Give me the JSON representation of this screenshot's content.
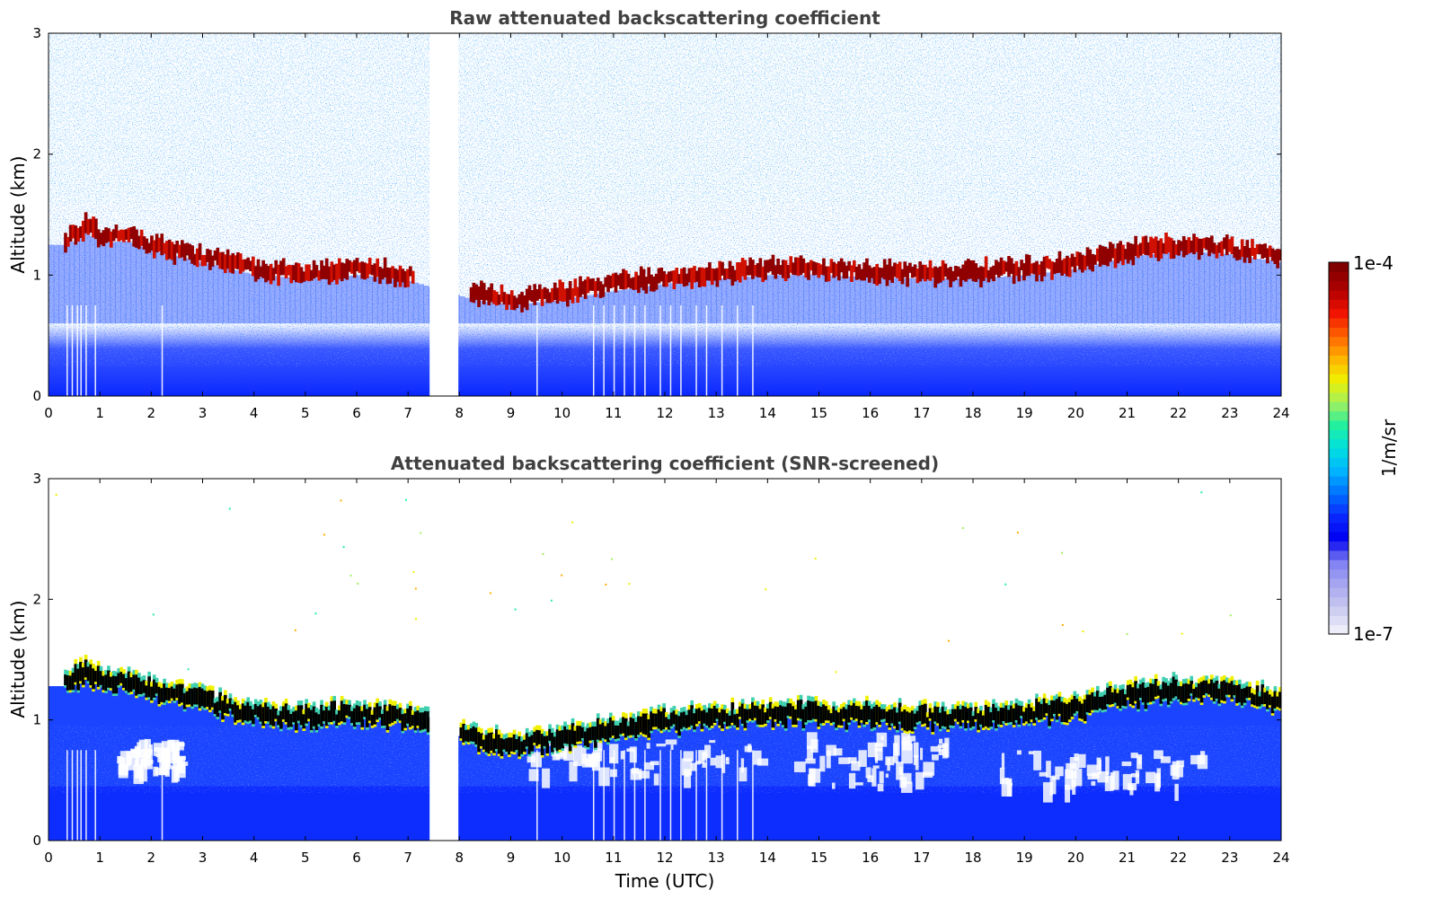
{
  "chart_data": [
    {
      "type": "heatmap",
      "title": "Raw attenuated backscattering coefficient",
      "ylabel": "Altitude (km)",
      "xlabel": "",
      "xlim": [
        0,
        24
      ],
      "ylim": [
        0,
        3
      ],
      "x_ticks": [
        "0",
        "1",
        "2",
        "3",
        "4",
        "5",
        "6",
        "7",
        "8",
        "9",
        "10",
        "11",
        "12",
        "13",
        "14",
        "15",
        "16",
        "17",
        "18",
        "19",
        "20",
        "21",
        "22",
        "23",
        "24"
      ],
      "y_ticks": [
        "0",
        "1",
        "2",
        "3"
      ],
      "data_gap_hours": [
        7.42,
        7.98
      ],
      "cloud_layer_altitude_km": {
        "x": [
          0.3,
          0.7,
          1.0,
          1.5,
          2.0,
          2.5,
          3.0,
          3.7,
          4.0,
          5.0,
          6.0,
          7.0,
          8.2,
          9.0,
          10.0,
          11.0,
          12.0,
          13.0,
          14.0,
          15.0,
          16.0,
          17.0,
          18.0,
          19.0,
          20.0,
          21.0,
          22.0,
          23.0,
          24.0
        ],
        "y": [
          1.3,
          1.4,
          1.32,
          1.33,
          1.25,
          1.2,
          1.15,
          1.08,
          1.05,
          1.02,
          1.05,
          1.0,
          0.85,
          0.8,
          0.85,
          0.92,
          0.98,
          1.02,
          1.05,
          1.05,
          1.03,
          1.02,
          1.02,
          1.05,
          1.1,
          1.2,
          1.25,
          1.22,
          1.15
        ]
      },
      "background": "noisy returns above ~1 km, stronger above 2 km between 10 and 17 UTC; dense aerosol near surface"
    },
    {
      "type": "heatmap",
      "title": "Attenuated backscattering coefficient (SNR-screened)",
      "ylabel": "Altitude (km)",
      "xlabel": "Time (UTC)",
      "xlim": [
        0,
        24
      ],
      "ylim": [
        0,
        3
      ],
      "x_ticks": [
        "0",
        "1",
        "2",
        "3",
        "4",
        "5",
        "6",
        "7",
        "8",
        "9",
        "10",
        "11",
        "12",
        "13",
        "14",
        "15",
        "16",
        "17",
        "18",
        "19",
        "20",
        "21",
        "22",
        "23",
        "24"
      ],
      "y_ticks": [
        "0",
        "1",
        "2",
        "3"
      ],
      "data_gap_hours": [
        7.42,
        7.98
      ],
      "background": "signal below cloud base retained; noise above cloud removed"
    }
  ],
  "colorbar": {
    "label": "1/m/sr",
    "max_label": "1e-4",
    "min_label": "1e-7",
    "colors": [
      "#ecedf8",
      "#c8c8f0",
      "#a6a6f0",
      "#7f7ff2",
      "#0000f0",
      "#0a28ff",
      "#0070ff",
      "#00b4ff",
      "#00e0e0",
      "#20f0a0",
      "#a0f060",
      "#f0f000",
      "#ffb000",
      "#ff6000",
      "#f01000",
      "#b00000",
      "#800000"
    ]
  }
}
